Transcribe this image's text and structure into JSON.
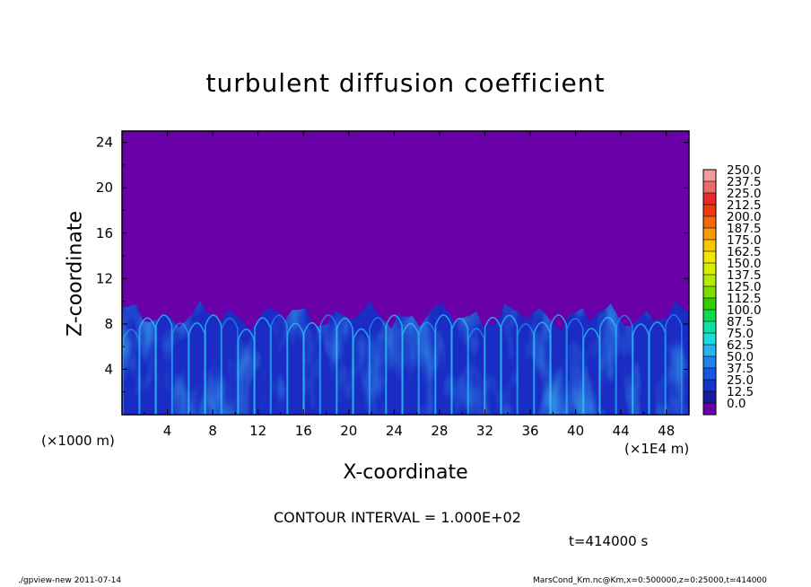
{
  "chart_data": {
    "type": "heatmap",
    "title": "turbulent diffusion coefficient",
    "xlabel": "X-coordinate",
    "ylabel": "Z-coordinate",
    "x_unit": "(×1E4 m)",
    "y_unit": "(×1000 m)",
    "x_ticks": [
      "4",
      "8",
      "12",
      "16",
      "20",
      "24",
      "28",
      "32",
      "36",
      "40",
      "44",
      "48"
    ],
    "y_ticks": [
      "4",
      "8",
      "12",
      "16",
      "20",
      "24"
    ],
    "xlim": [
      0,
      50
    ],
    "ylim": [
      0,
      25
    ],
    "colorbar_levels": [
      "250.0",
      "237.5",
      "225.0",
      "212.5",
      "200.0",
      "187.5",
      "175.0",
      "162.5",
      "150.0",
      "137.5",
      "125.0",
      "112.5",
      "100.0",
      "87.5",
      "75.0",
      "62.5",
      "50.0",
      "37.5",
      "25.0",
      "12.5",
      "0.0"
    ],
    "colorbar_colors": [
      "#f19b9b",
      "#ee6a6a",
      "#e62a2a",
      "#ec3b12",
      "#f36a0a",
      "#f79a05",
      "#f8c700",
      "#f1e800",
      "#d6ef00",
      "#b2ec00",
      "#7ddc00",
      "#2fd000",
      "#12d84f",
      "#0ce0a5",
      "#1adcdc",
      "#27b3ef",
      "#1c82ee",
      "#1658e6",
      "#1435c8",
      "#161b9d",
      "#6b00a6"
    ],
    "field_background_color": "#6a00a8",
    "contour_interval_text": "CONTOUR INTERVAL = 1.000E+02",
    "time_text": "t=414000 s",
    "footer_left": "./gpview-new   2011-07-14",
    "footer_right": "MarsCond_Km.nc@Km,x=0:500000,z=0:25000,t=414000"
  }
}
